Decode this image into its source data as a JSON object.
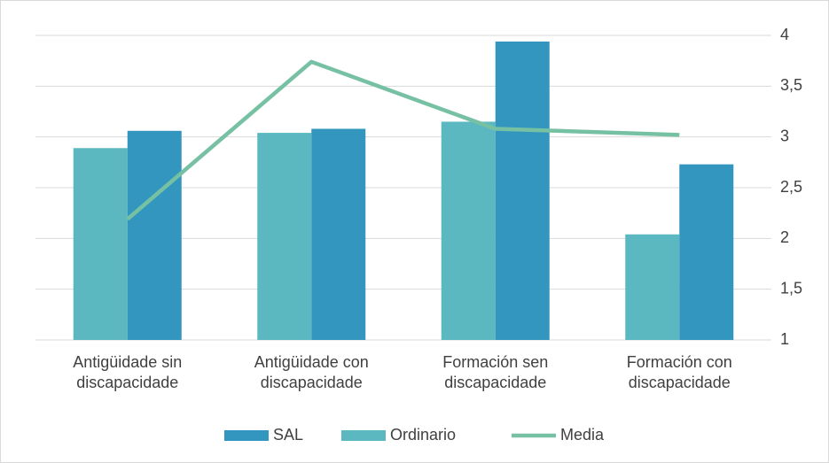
{
  "chart_data": {
    "type": "bar",
    "categories": [
      "Antigüidade sin discapacidade",
      "Antigüidade con discapacidade",
      "Formación sen discapacidade",
      "Formación con discapacidade"
    ],
    "series": [
      {
        "name": "SAL",
        "color": "#3296bf",
        "values": [
          3.06,
          3.08,
          3.94,
          2.73
        ]
      },
      {
        "name": "Ordinario",
        "color": "#5bb8c1",
        "values": [
          2.89,
          3.04,
          3.15,
          2.04
        ]
      },
      {
        "name": "Media",
        "type": "line",
        "color": "#76c1a3",
        "values": [
          2.19,
          3.74,
          3.08,
          3.02
        ]
      }
    ],
    "ylim": [
      1,
      4
    ],
    "yticks": [
      1,
      {
        "value": 1.5,
        "label": "1,5"
      },
      2,
      {
        "value": 2.5,
        "label": "2,5"
      },
      3,
      {
        "value": 3.5,
        "label": "3,5"
      },
      4
    ],
    "axis_side": "right",
    "grid": true,
    "legend": "bottom"
  }
}
